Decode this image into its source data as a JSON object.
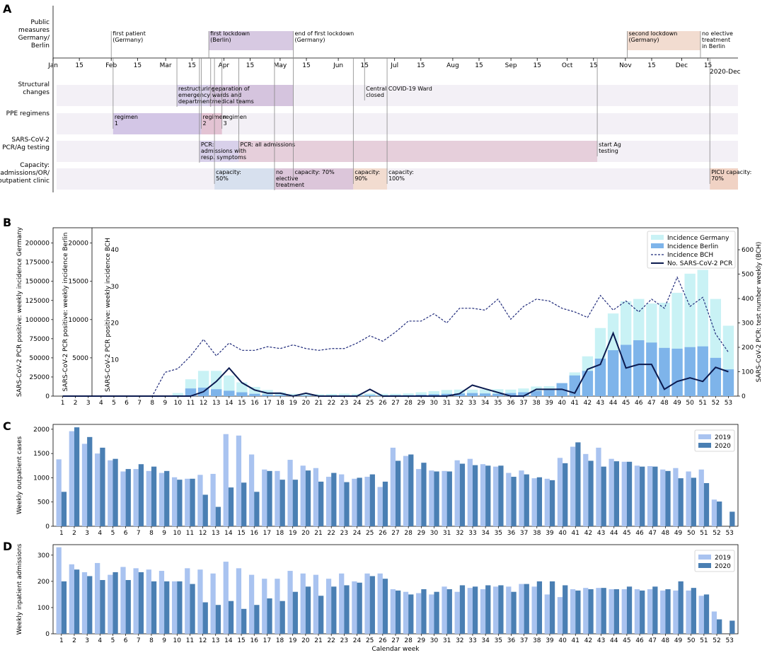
{
  "panels": {
    "a": "A",
    "b": "B",
    "c": "C",
    "d": "D"
  },
  "timeline": {
    "row_labels": [
      [
        "Public",
        "measures",
        "Germany/",
        "Berlin"
      ],
      [
        "Structural",
        "changes"
      ],
      [
        "PPE regimens"
      ],
      [
        "SARS-CoV-2",
        "PCR/Ag testing"
      ],
      [
        "Capacity:",
        "admissions/OR/",
        "outpatient clinic"
      ]
    ],
    "month_ticks": [
      "Jan",
      "15",
      "Feb",
      "15",
      "Mar",
      "15",
      "Apr",
      "15",
      "May",
      "15",
      "Jun",
      "15",
      "Jul",
      "15",
      "Aug",
      "15",
      "Sep",
      "15",
      "Oct",
      "15",
      "Nov",
      "15",
      "Dec",
      "15"
    ],
    "year_label": "2020-Dec",
    "public_measures": [
      {
        "lines": [
          "first patient",
          "(Germany)"
        ],
        "day": 31
      },
      {
        "lines": [
          "first lockdown",
          "(Berlin)"
        ],
        "day": 83,
        "end": 128,
        "color": "#d7c9e2"
      },
      {
        "lines": [
          "end of first lockdown",
          "(Germany)"
        ],
        "day": 128
      },
      {
        "lines": [
          "second lockdown",
          "(Germany)"
        ],
        "day": 306,
        "end": 345,
        "color": "#f2dcd0"
      },
      {
        "lines": [
          "no elective",
          "treatment",
          "in Berlin"
        ],
        "day": 345
      }
    ],
    "structural": [
      {
        "lines": [
          "restructuring",
          "emergency",
          "department"
        ],
        "day": 66
      },
      {
        "lines": [
          "separation of",
          "wards and",
          "medical teams"
        ],
        "day": 84
      },
      {
        "lines": [
          "Central COVID-19 Ward",
          "closed"
        ],
        "day": 166
      }
    ],
    "ppe": [
      {
        "lines": [
          "regimen",
          "1"
        ],
        "day": 32
      },
      {
        "lines": [
          "regimen",
          "2"
        ],
        "day": 79
      },
      {
        "lines": [
          "regimen",
          "3"
        ],
        "day": 90
      }
    ],
    "testing": [
      {
        "lines": [
          "PCR:",
          "admissions with",
          "resp. symptoms"
        ],
        "day": 78
      },
      {
        "lines": [
          "PCR: all admissions"
        ],
        "day": 99
      },
      {
        "lines": [
          "start Ag",
          "testing"
        ],
        "day": 290
      }
    ],
    "capacity": [
      {
        "lines": [
          "capacity:",
          "50%"
        ],
        "day": 86
      },
      {
        "lines": [
          "no",
          "elective",
          "treatment"
        ],
        "day": 118
      },
      {
        "lines": [
          "capacity: 70%"
        ],
        "day": 128
      },
      {
        "lines": [
          "capacity:",
          "90%"
        ],
        "day": 160
      },
      {
        "lines": [
          "capacity:",
          "100%"
        ],
        "day": 178
      },
      {
        "lines": [
          "PICU capacity:",
          "70%"
        ],
        "day": 350
      }
    ]
  },
  "axes_b": {
    "germany_label": "SARS-CoV-2 PCR positive: weekly incidence Germany",
    "berlin_label": "SARS-CoV-2 PCR positive: weekly incidence Berlin",
    "bch_label": "SARS-CoV-2 PCR positive: weekly incidence BCH",
    "right_label": "SARS-CoV-2 PCR: test number weekly (BCH)",
    "germany_ticks": [
      "0",
      "25000",
      "50000",
      "75000",
      "100000",
      "125000",
      "150000",
      "175000",
      "200000"
    ],
    "berlin_ticks": [
      "5000",
      "10000",
      "15000",
      "20000"
    ],
    "bch_ticks": [
      "10",
      "20",
      "30",
      "40"
    ],
    "right_ticks": [
      "0",
      "100",
      "200",
      "300",
      "400",
      "500",
      "600"
    ]
  },
  "axes_c": {
    "ylabel": "Weekly outpatient cases",
    "ticks": [
      "0",
      "500",
      "1000",
      "1500",
      "2000"
    ]
  },
  "axes_d": {
    "ylabel": "Weekly inpatient admissions",
    "xlabel": "Calendar week",
    "ticks": [
      "0",
      "100",
      "200",
      "300"
    ]
  },
  "colors": {
    "germany": "#c9f2f5",
    "berlin": "#7eb4ea",
    "bch": "#1f2a7a",
    "pcr": "#0b1a4f",
    "y2019": "#a9c3f0",
    "y2020": "#4a7fb3",
    "grid_band": "#f3f0f6"
  },
  "chart_data": [
    {
      "type": "bar",
      "title": "",
      "xlabel": "",
      "categories": [
        1,
        2,
        3,
        4,
        5,
        6,
        7,
        8,
        9,
        10,
        11,
        12,
        13,
        14,
        15,
        16,
        17,
        18,
        19,
        20,
        21,
        22,
        23,
        24,
        25,
        26,
        27,
        28,
        29,
        30,
        31,
        32,
        33,
        34,
        35,
        36,
        37,
        38,
        39,
        40,
        41,
        42,
        43,
        44,
        45,
        46,
        47,
        48,
        49,
        50,
        51,
        52,
        53
      ],
      "series": [
        {
          "name": "Incidence Germany",
          "kind": "bar",
          "axis": "SARS-CoV-2 PCR positive: weekly incidence Germany",
          "values": [
            0,
            0,
            0,
            0,
            100,
            100,
            0,
            0,
            900,
            4000,
            22000,
            33000,
            33000,
            27000,
            18000,
            12000,
            8000,
            5000,
            3000,
            2500,
            2500,
            2800,
            3200,
            3000,
            3500,
            3000,
            3000,
            3500,
            5000,
            6500,
            8000,
            8500,
            8500,
            9000,
            9000,
            8500,
            10000,
            12500,
            13000,
            16000,
            31000,
            52000,
            89000,
            108000,
            124000,
            127000,
            121000,
            122000,
            135000,
            160000,
            165000,
            127000,
            92000
          ]
        },
        {
          "name": "Incidence Berlin",
          "kind": "bar",
          "axis": "SARS-CoV-2 PCR positive: weekly incidence Berlin",
          "values": [
            0,
            0,
            0,
            0,
            0,
            0,
            0,
            0,
            0,
            100,
            1000,
            1100,
            900,
            700,
            500,
            300,
            200,
            150,
            100,
            100,
            80,
            100,
            100,
            100,
            150,
            100,
            120,
            120,
            180,
            250,
            300,
            350,
            400,
            350,
            300,
            400,
            500,
            700,
            800,
            1700,
            2700,
            3300,
            4900,
            6000,
            6700,
            7300,
            7000,
            6300,
            6200,
            6400,
            6500,
            5000,
            3500
          ]
        },
        {
          "name": "Incidence BCH",
          "kind": "line",
          "axis": "SARS-CoV-2 PCR positive: weekly incidence BCH",
          "values": [
            0,
            0,
            0,
            0,
            0,
            0,
            0,
            0,
            6.5,
            7.5,
            11,
            15.5,
            11,
            14.5,
            12.5,
            12.5,
            13.5,
            13,
            14,
            13,
            12.5,
            13,
            13,
            14.5,
            16.5,
            15,
            17.5,
            20.5,
            20.5,
            22.5,
            20,
            24,
            24,
            23.5,
            26.5,
            21,
            24.5,
            26.5,
            26,
            24,
            23,
            21.5,
            27.5,
            23.5,
            26,
            23,
            26.5,
            24,
            32.5,
            24.5,
            27,
            17,
            12
          ]
        },
        {
          "name": "No. SARS-CoV-2 PCR",
          "kind": "line",
          "axis": "SARS-CoV-2 PCR: test number weekly (BCH)",
          "values": [
            0,
            0,
            0,
            0,
            0,
            0,
            0,
            0,
            0,
            0,
            0,
            18,
            60,
            115,
            55,
            25,
            12,
            12,
            0,
            12,
            0,
            0,
            0,
            0,
            28,
            0,
            0,
            0,
            0,
            0,
            0,
            10,
            45,
            30,
            15,
            0,
            0,
            28,
            28,
            28,
            12,
            110,
            130,
            258,
            115,
            130,
            130,
            28,
            60,
            75,
            60,
            118,
            100
          ]
        }
      ]
    },
    {
      "type": "bar",
      "title": "",
      "ylabel": "Weekly outpatient cases",
      "ylim": [
        0,
        2100
      ],
      "categories": [
        1,
        2,
        3,
        4,
        5,
        6,
        7,
        8,
        9,
        10,
        11,
        12,
        13,
        14,
        15,
        16,
        17,
        18,
        19,
        20,
        21,
        22,
        23,
        24,
        25,
        26,
        27,
        28,
        29,
        30,
        31,
        32,
        33,
        34,
        35,
        36,
        37,
        38,
        39,
        40,
        41,
        42,
        43,
        44,
        45,
        46,
        47,
        48,
        49,
        50,
        51,
        52,
        53
      ],
      "series": [
        {
          "name": "2019",
          "values": [
            1380,
            1960,
            1700,
            1500,
            1360,
            1130,
            1180,
            1140,
            1100,
            1010,
            980,
            1060,
            1080,
            1900,
            1870,
            1480,
            1170,
            1140,
            1370,
            1250,
            1200,
            1020,
            1070,
            980,
            1020,
            810,
            1620,
            1450,
            1180,
            1150,
            1140,
            1360,
            1390,
            1280,
            1230,
            1100,
            1150,
            990,
            980,
            1410,
            1640,
            1490,
            1620,
            1390,
            1330,
            1250,
            1240,
            1170,
            1200,
            1130,
            1170,
            550,
            0
          ]
        },
        {
          "name": "2020",
          "values": [
            710,
            2040,
            1840,
            1620,
            1390,
            1180,
            1280,
            1230,
            1140,
            960,
            980,
            650,
            400,
            800,
            900,
            710,
            1140,
            960,
            960,
            1150,
            920,
            1100,
            910,
            1000,
            1070,
            920,
            1350,
            1480,
            1310,
            1130,
            1130,
            1290,
            1260,
            1250,
            1250,
            1020,
            1070,
            1010,
            950,
            1300,
            1730,
            1350,
            1230,
            1340,
            1330,
            1230,
            1230,
            1140,
            990,
            1000,
            890,
            510,
            300
          ]
        }
      ]
    },
    {
      "type": "bar",
      "title": "",
      "ylabel": "Weekly inpatient admissions",
      "xlabel": "Calendar week",
      "ylim": [
        0,
        340
      ],
      "categories": [
        1,
        2,
        3,
        4,
        5,
        6,
        7,
        8,
        9,
        10,
        11,
        12,
        13,
        14,
        15,
        16,
        17,
        18,
        19,
        20,
        21,
        22,
        23,
        24,
        25,
        26,
        27,
        28,
        29,
        30,
        31,
        32,
        33,
        34,
        35,
        36,
        37,
        38,
        39,
        40,
        41,
        42,
        43,
        44,
        45,
        46,
        47,
        48,
        49,
        50,
        51,
        52,
        53
      ],
      "series": [
        {
          "name": "2019",
          "values": [
            330,
            265,
            235,
            270,
            225,
            255,
            250,
            245,
            240,
            200,
            250,
            245,
            230,
            275,
            250,
            225,
            210,
            210,
            240,
            230,
            225,
            210,
            230,
            200,
            230,
            230,
            170,
            160,
            155,
            150,
            180,
            160,
            175,
            170,
            180,
            180,
            190,
            180,
            150,
            140,
            170,
            175,
            175,
            170,
            170,
            170,
            170,
            165,
            165,
            165,
            145,
            85,
            0
          ]
        },
        {
          "name": "2020",
          "values": [
            200,
            245,
            220,
            205,
            235,
            205,
            235,
            200,
            200,
            200,
            190,
            120,
            110,
            125,
            95,
            110,
            135,
            125,
            160,
            180,
            145,
            180,
            185,
            195,
            220,
            210,
            165,
            150,
            170,
            160,
            170,
            185,
            180,
            185,
            185,
            160,
            190,
            200,
            200,
            185,
            165,
            170,
            175,
            170,
            180,
            165,
            180,
            170,
            200,
            175,
            150,
            55,
            50
          ]
        }
      ]
    }
  ]
}
